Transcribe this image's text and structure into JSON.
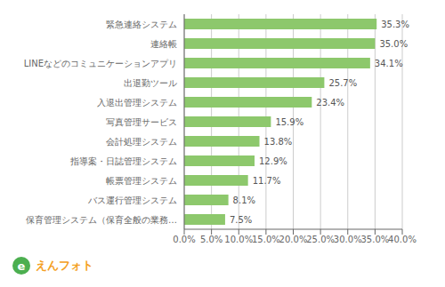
{
  "chart_data": {
    "type": "bar",
    "orientation": "horizontal",
    "categories": [
      "保育管理システム（保育全般の業務…",
      "バス運行管理システム",
      "帳票管理システム",
      "指導案・日誌管理システム",
      "会計処理システム",
      "写真管理サービス",
      "入退出管理システム",
      "出退勤ツール",
      "LINEなどのコミュニケーションアプリ",
      "連絡帳",
      "緊急連絡システム"
    ],
    "values": [
      7.5,
      8.1,
      11.7,
      12.9,
      13.8,
      15.9,
      23.4,
      25.7,
      34.1,
      35.0,
      35.3
    ],
    "value_labels": [
      "7.5%",
      "8.1%",
      "11.7%",
      "12.9%",
      "13.8%",
      "15.9%",
      "23.4%",
      "25.7%",
      "34.1%",
      "35.0%",
      "35.3%"
    ],
    "data_labels": true,
    "color": "#8dc86c",
    "xlim": [
      0,
      40
    ],
    "xticks": [
      {
        "value": 0,
        "label": "0.0%"
      },
      {
        "value": 5,
        "label": "5.0%"
      },
      {
        "value": 10,
        "label": "10.0%"
      },
      {
        "value": 15,
        "label": "15.0%"
      },
      {
        "value": 20,
        "label": "20.0%"
      },
      {
        "value": 25,
        "label": "25.0%"
      },
      {
        "value": 30,
        "label": "30.0%"
      },
      {
        "value": 35,
        "label": "35.0%"
      },
      {
        "value": 40,
        "label": "40.0%"
      }
    ],
    "grid": true,
    "annotations": [
      {
        "text": "e",
        "color": "#4caf50"
      },
      {
        "text": "えんフォト",
        "color": "#f4a023"
      }
    ]
  }
}
